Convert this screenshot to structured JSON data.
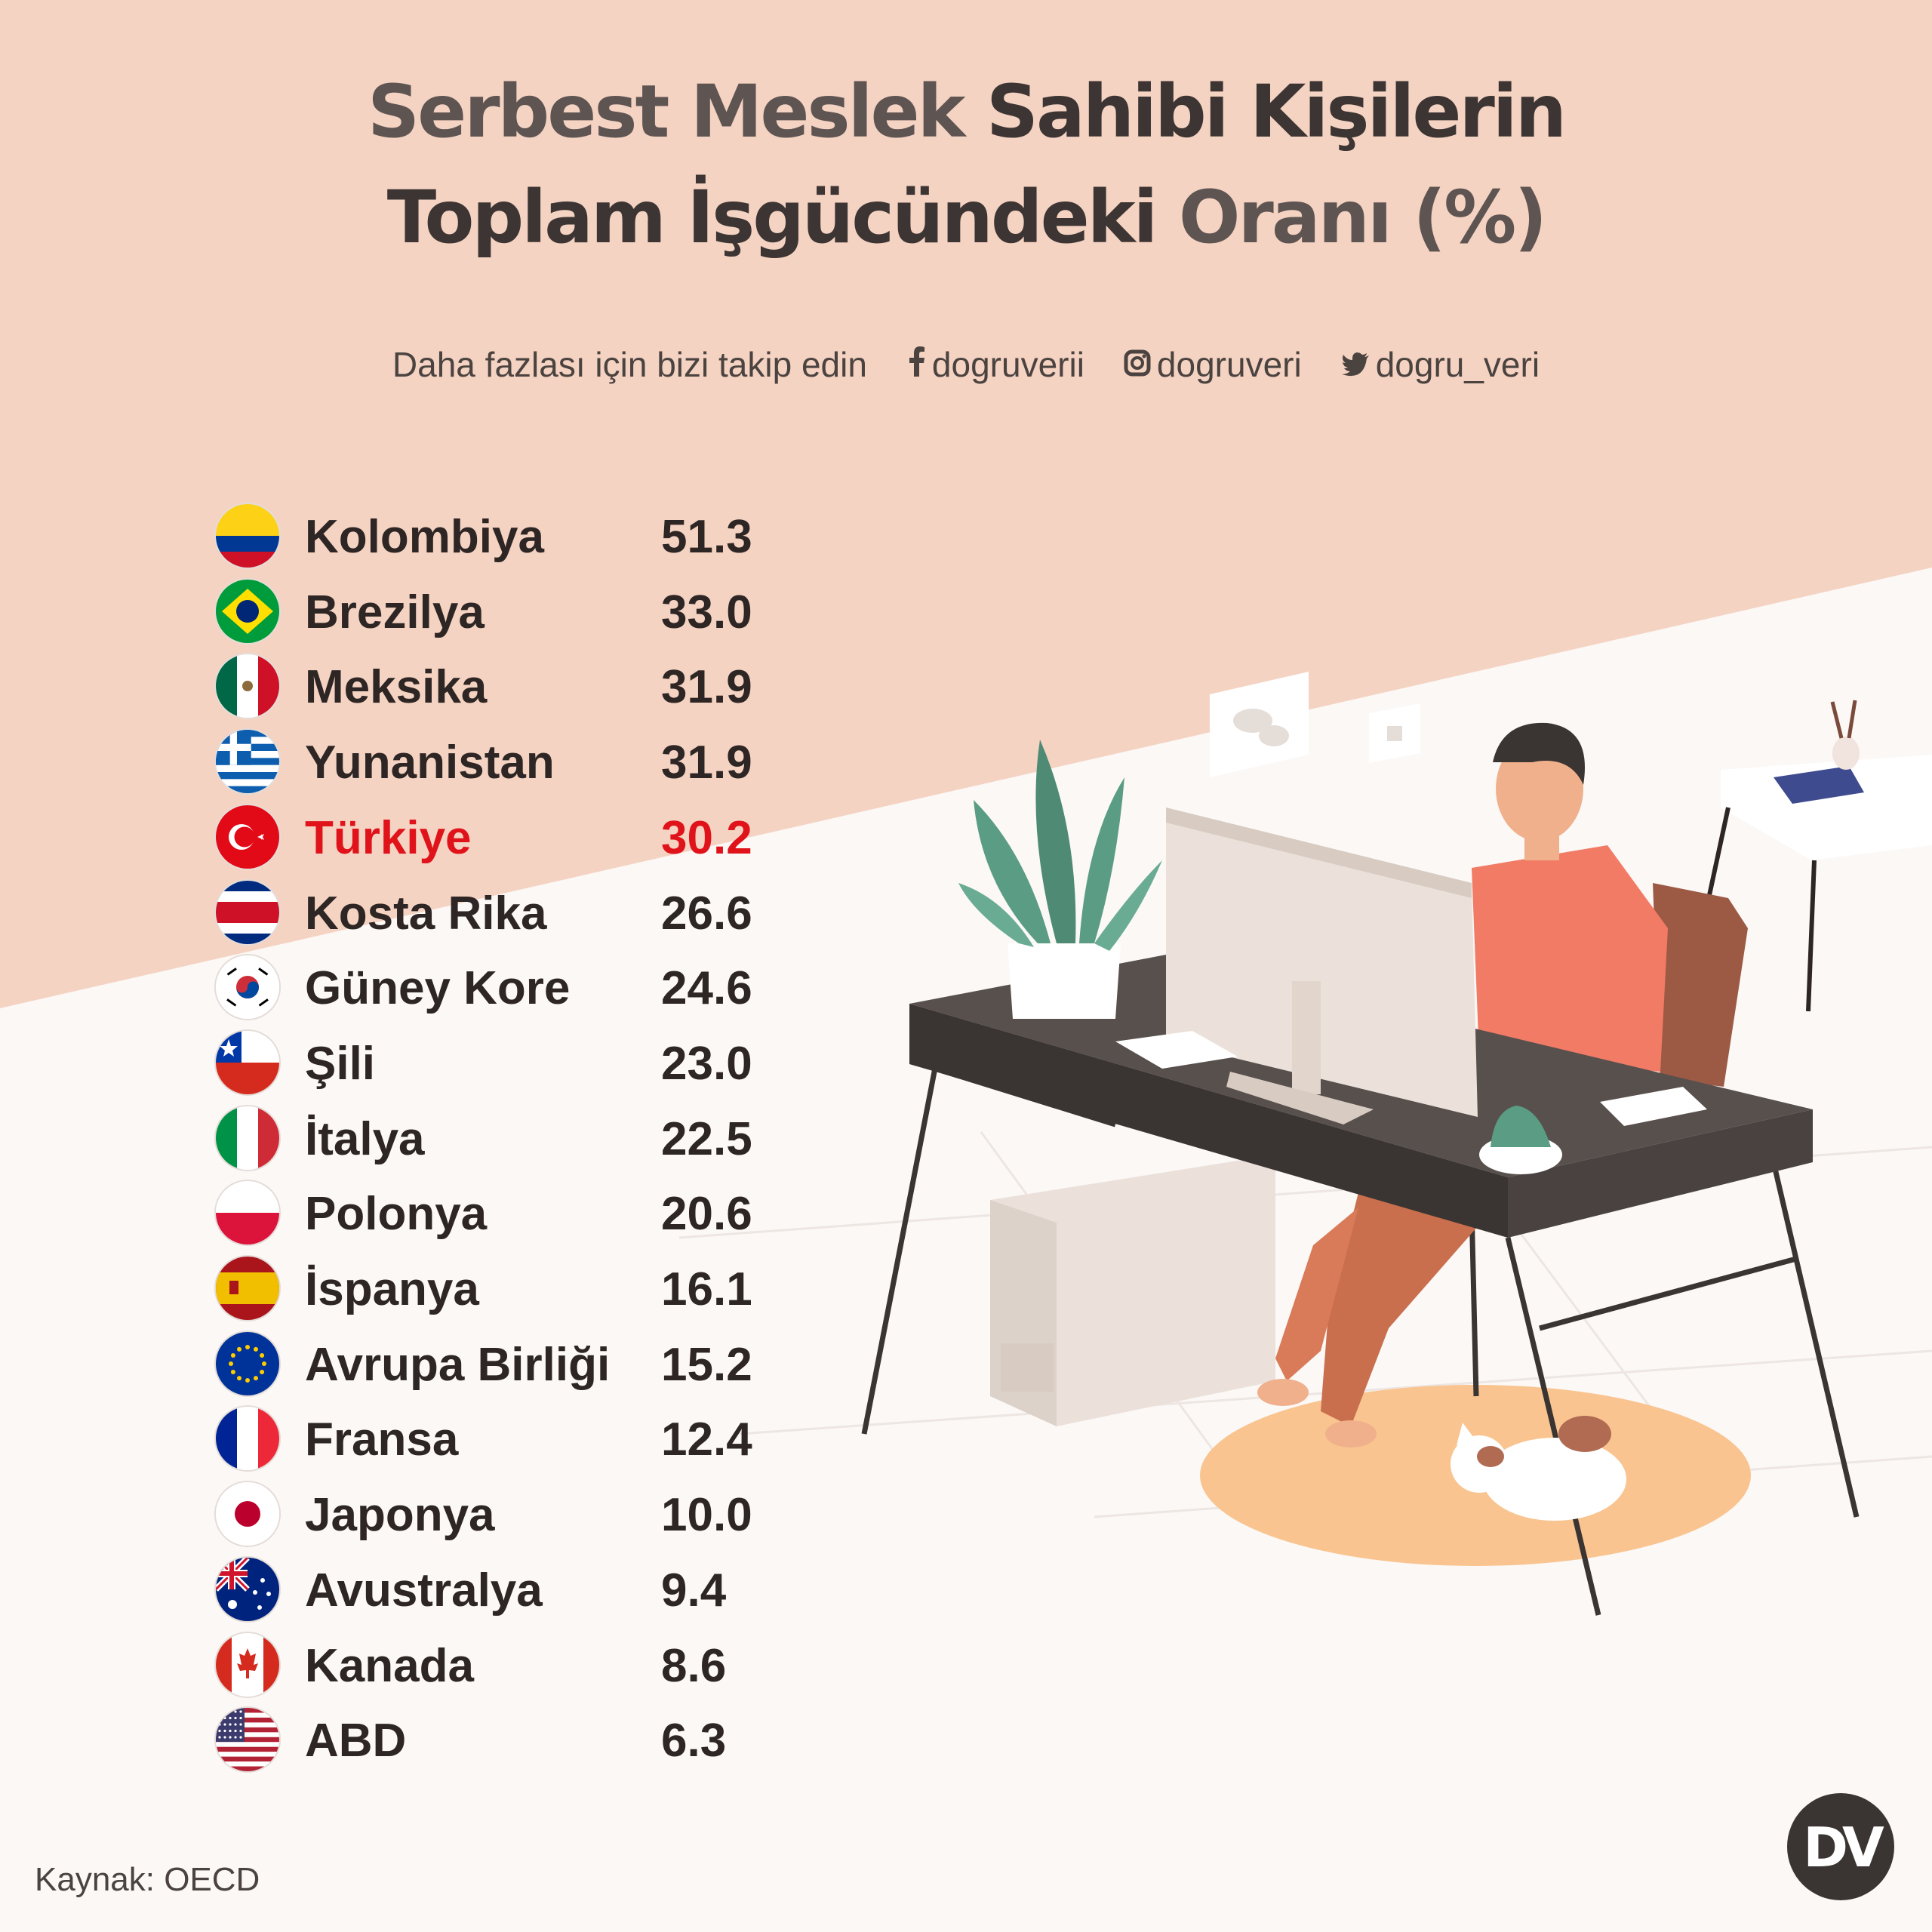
{
  "title": {
    "line1_part1": "Serbest Meslek",
    "line1_part2": "Sahibi Kişilerin",
    "line2_part1": "Toplam İşgücündeki",
    "line2_part2": "Oranı (%)"
  },
  "follow": {
    "text": "Daha fazlası için bizi takip edin",
    "facebook_icon": "facebook-icon",
    "facebook": "dogruverii",
    "instagram_icon": "instagram-icon",
    "instagram": "dogruveri",
    "twitter_icon": "twitter-icon",
    "twitter": "dogru_veri"
  },
  "source": "Kaynak: OECD",
  "logo_text": "DV",
  "colors": {
    "background_top": "#f5d3c2",
    "background_bottom": "#fbf8f6",
    "text": "#2e2624",
    "highlight": "#e0131b"
  },
  "chart_data": {
    "type": "table",
    "columns": [
      "country",
      "value"
    ],
    "highlight": "Türkiye",
    "rows": [
      {
        "country": "Kolombiya",
        "value": "51.3",
        "flag": "colombia"
      },
      {
        "country": "Brezilya",
        "value": "33.0",
        "flag": "brazil"
      },
      {
        "country": "Meksika",
        "value": "31.9",
        "flag": "mexico"
      },
      {
        "country": "Yunanistan",
        "value": "31.9",
        "flag": "greece"
      },
      {
        "country": "Türkiye",
        "value": "30.2",
        "flag": "turkey"
      },
      {
        "country": "Kosta Rika",
        "value": "26.6",
        "flag": "costa-rica"
      },
      {
        "country": "Güney Kore",
        "value": "24.6",
        "flag": "south-korea"
      },
      {
        "country": "Şili",
        "value": "23.0",
        "flag": "chile"
      },
      {
        "country": "İtalya",
        "value": "22.5",
        "flag": "italy"
      },
      {
        "country": "Polonya",
        "value": "20.6",
        "flag": "poland"
      },
      {
        "country": "İspanya",
        "value": "16.1",
        "flag": "spain"
      },
      {
        "country": "Avrupa Birliği",
        "value": "15.2",
        "flag": "eu"
      },
      {
        "country": "Fransa",
        "value": "12.4",
        "flag": "france"
      },
      {
        "country": "Japonya",
        "value": "10.0",
        "flag": "japan"
      },
      {
        "country": "Avustralya",
        "value": "9.4",
        "flag": "australia"
      },
      {
        "country": "Kanada",
        "value": "8.6",
        "flag": "canada"
      },
      {
        "country": "ABD",
        "value": "6.3",
        "flag": "usa"
      }
    ]
  }
}
